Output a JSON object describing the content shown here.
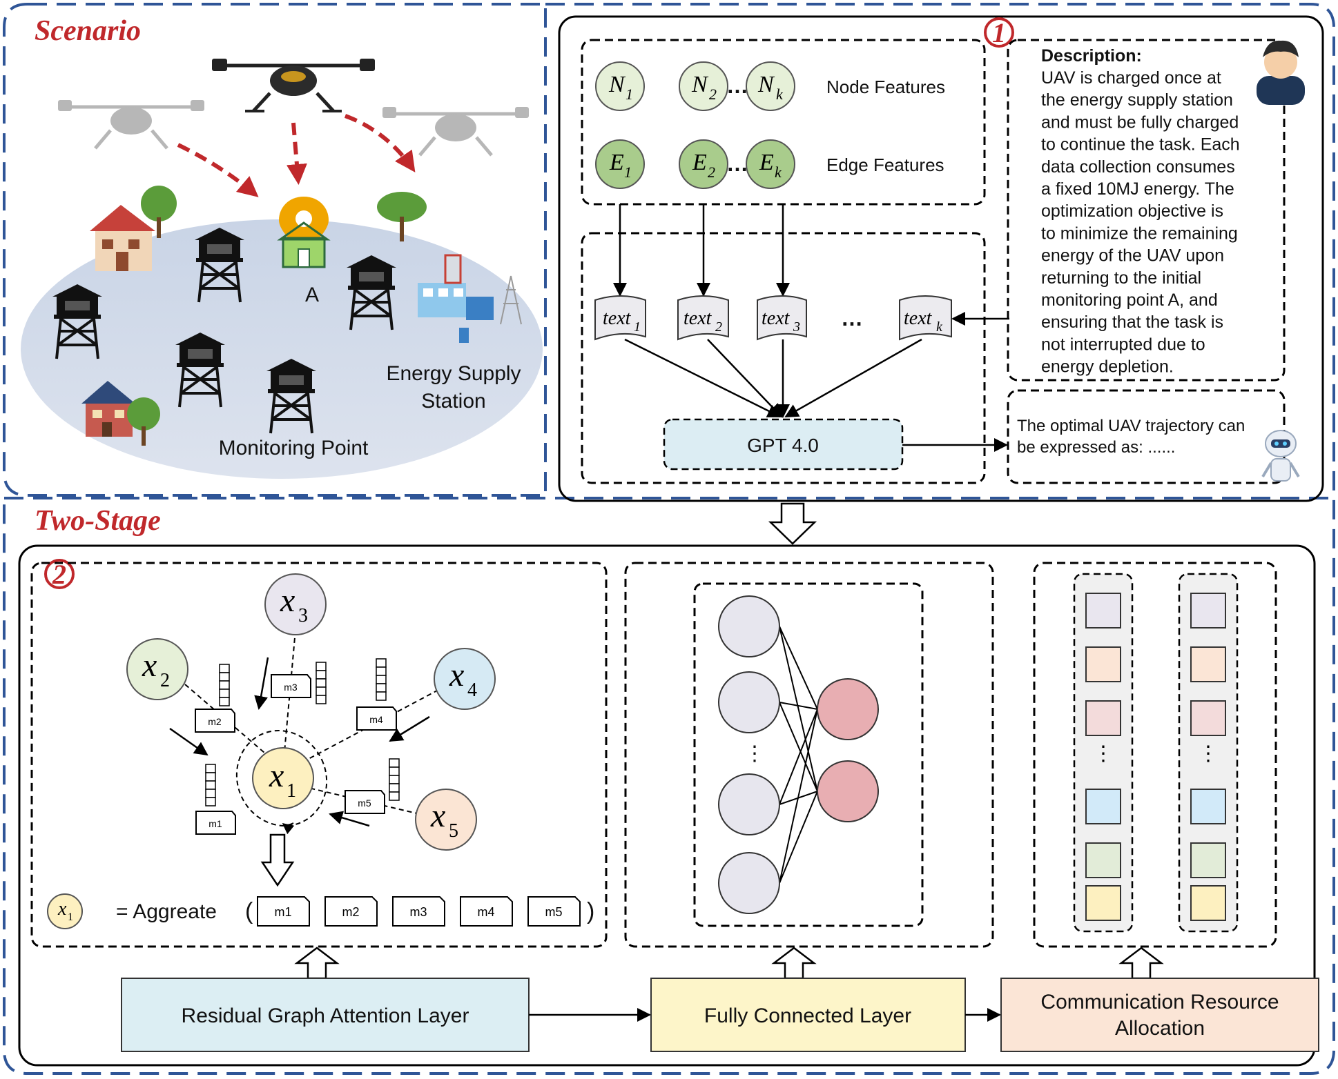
{
  "scenario": {
    "title": "Scenario",
    "label_a": "A",
    "label_energy_line1": "Energy Supply",
    "label_energy_line2": "Station",
    "label_monitoring": "Monitoring Point"
  },
  "stage1": {
    "badge": "1",
    "node_sub": [
      "1",
      "2",
      "k"
    ],
    "edge_sub": [
      "1",
      "2",
      "k"
    ],
    "node_letter": "N",
    "edge_letter": "E",
    "ellipsis": "…",
    "node_features": "Node Features",
    "edge_features": "Edge Features",
    "text_word": "text",
    "text_sub": [
      "1",
      "2",
      "3",
      "k"
    ],
    "text_ellipsis": "…",
    "gpt": "GPT 4.0",
    "description_title": "Description:",
    "description_lines": [
      "UAV is charged once at",
      "the energy supply station",
      "and must be fully charged",
      "to continue the task. Each",
      "data collection consumes",
      "a fixed 10MJ energy. The",
      "optimization objective is",
      "to minimize the remaining",
      "energy of the UAV upon",
      "returning to the initial",
      "monitoring point A, and",
      "ensuring that the task is",
      "not interrupted due to",
      "energy depletion."
    ],
    "output_line1": "The optimal UAV trajectory can",
    "output_line2": "be expressed as: ......"
  },
  "stage2": {
    "title": "Two-Stage",
    "badge": "2",
    "node_letter": "x",
    "node_subs": [
      "1",
      "2",
      "3",
      "4",
      "5"
    ],
    "messages": [
      "m1",
      "m2",
      "m3",
      "m4",
      "m5"
    ],
    "aggregate_text": "= Aggreate",
    "open_paren": "(",
    "close_paren": ")",
    "vertical_dots": "⋮",
    "layer_residual": "Residual Graph Attention Layer",
    "layer_fc": "Fully Connected Layer",
    "layer_comm_line1": "Communication Resource",
    "layer_comm_line2": "Allocation"
  },
  "colors": {
    "frame_blue": "#2f5597",
    "title_red": "#c0282b",
    "node_feature_fill": "#e6f0d8",
    "edge_feature_fill": "#a9cc8c",
    "gpt_fill": "#dcedf3",
    "residual_fill": "#dceef3",
    "fc_fill": "#fdf5c9",
    "comm_fill": "#fbe5d6",
    "x1_fill": "#fdf0c0",
    "x2_fill": "#e6f0d8",
    "x3_fill": "#e9e6ef",
    "x4_fill": "#d6eaf4",
    "x5_fill": "#fbe5d4",
    "nn_input_fill": "#e7e6ee",
    "nn_output_fill": "#e8aeb2"
  }
}
